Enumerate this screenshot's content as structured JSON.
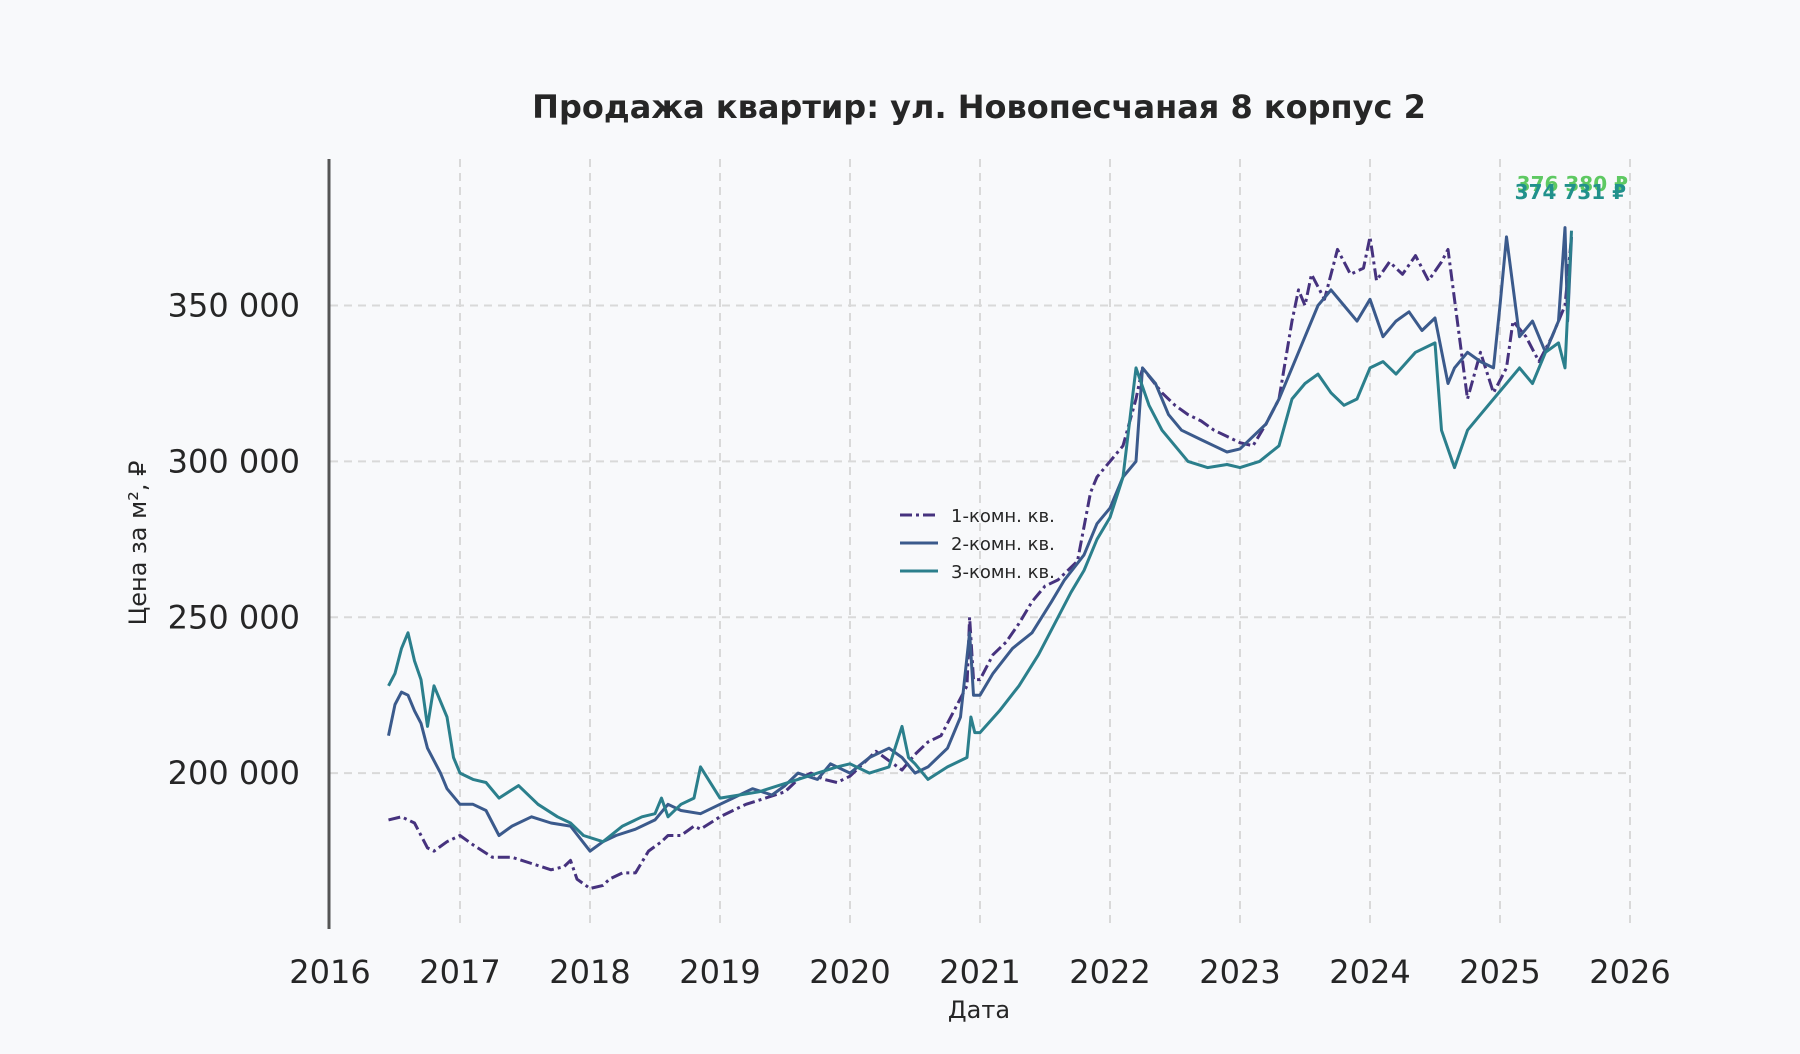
{
  "chart_data": {
    "type": "line",
    "title": "Продажа квартир: ул. Новопесчаная 8 корпус 2",
    "xlabel": "Дата",
    "ylabel": "Цена за м², ₽",
    "xlim": [
      2016.0,
      2026.0
    ],
    "ylim": [
      150000,
      397000
    ],
    "x_ticks": [
      "2016",
      "2017",
      "2018",
      "2019",
      "2020",
      "2021",
      "2022",
      "2023",
      "2024",
      "2025",
      "2026"
    ],
    "y_ticks": [
      {
        "value": 200000,
        "label": "200 000"
      },
      {
        "value": 250000,
        "label": "250 000"
      },
      {
        "value": 300000,
        "label": "300 000"
      },
      {
        "value": 350000,
        "label": "350 000"
      }
    ],
    "grid": true,
    "legend_position": "center",
    "series": [
      {
        "name": "1-комн. кв.",
        "color": "#46327e",
        "dash": "dashdot",
        "x": [
          2016.45,
          2016.55,
          2016.65,
          2016.75,
          2016.8,
          2016.9,
          2017.0,
          2017.1,
          2017.25,
          2017.4,
          2017.55,
          2017.7,
          2017.8,
          2017.85,
          2017.9,
          2018.0,
          2018.1,
          2018.15,
          2018.25,
          2018.35,
          2018.45,
          2018.55,
          2018.6,
          2018.7,
          2018.8,
          2018.85,
          2019.0,
          2019.1,
          2019.2,
          2019.35,
          2019.5,
          2019.6,
          2019.7,
          2019.8,
          2019.9,
          2020.0,
          2020.1,
          2020.2,
          2020.3,
          2020.4,
          2020.5,
          2020.6,
          2020.7,
          2020.8,
          2020.9,
          2020.92,
          2020.95,
          2021.0,
          2021.1,
          2021.2,
          2021.3,
          2021.4,
          2021.5,
          2021.6,
          2021.75,
          2021.85,
          2021.9,
          2022.0,
          2022.1,
          2022.2,
          2022.25,
          2022.4,
          2022.5,
          2022.6,
          2022.7,
          2022.8,
          2022.9,
          2023.0,
          2023.1,
          2023.2,
          2023.3,
          2023.4,
          2023.45,
          2023.5,
          2023.55,
          2023.65,
          2023.75,
          2023.85,
          2023.95,
          2024.0,
          2024.05,
          2024.15,
          2024.25,
          2024.35,
          2024.45,
          2024.55,
          2024.6,
          2024.65,
          2024.75,
          2024.85,
          2024.95,
          2025.05,
          2025.1,
          2025.2,
          2025.3,
          2025.4,
          2025.5,
          2025.55
        ],
        "y": [
          185000,
          186000,
          184000,
          176000,
          175000,
          178000,
          180000,
          177000,
          173000,
          173000,
          171000,
          169000,
          170000,
          172000,
          166000,
          163000,
          164000,
          166000,
          168000,
          168000,
          175000,
          178000,
          180000,
          180000,
          183000,
          182000,
          186000,
          188000,
          190000,
          192000,
          194000,
          198000,
          200000,
          198000,
          197000,
          199000,
          203000,
          207000,
          204000,
          201000,
          206000,
          210000,
          212000,
          220000,
          228000,
          250000,
          230000,
          230000,
          238000,
          242000,
          248000,
          255000,
          260000,
          262000,
          268000,
          290000,
          295000,
          300000,
          305000,
          320000,
          330000,
          322000,
          318000,
          315000,
          313000,
          310000,
          308000,
          306000,
          305000,
          312000,
          320000,
          345000,
          355000,
          350000,
          360000,
          352000,
          368000,
          360000,
          362000,
          372000,
          358000,
          364000,
          360000,
          366000,
          358000,
          364000,
          368000,
          352000,
          320000,
          335000,
          322000,
          330000,
          345000,
          340000,
          332000,
          340000,
          350000,
          372000
        ]
      },
      {
        "name": "2-комн. кв.",
        "color": "#3b5a8c",
        "dash": "solid",
        "x": [
          2016.45,
          2016.5,
          2016.55,
          2016.6,
          2016.65,
          2016.7,
          2016.75,
          2016.85,
          2016.9,
          2017.0,
          2017.1,
          2017.2,
          2017.3,
          2017.4,
          2017.55,
          2017.7,
          2017.85,
          2018.0,
          2018.1,
          2018.2,
          2018.35,
          2018.5,
          2018.6,
          2018.7,
          2018.85,
          2019.0,
          2019.1,
          2019.25,
          2019.4,
          2019.5,
          2019.6,
          2019.75,
          2019.85,
          2020.0,
          2020.15,
          2020.3,
          2020.4,
          2020.5,
          2020.6,
          2020.75,
          2020.85,
          2020.92,
          2020.95,
          2021.0,
          2021.1,
          2021.25,
          2021.4,
          2021.55,
          2021.65,
          2021.8,
          2021.9,
          2022.0,
          2022.1,
          2022.2,
          2022.25,
          2022.35,
          2022.45,
          2022.55,
          2022.7,
          2022.8,
          2022.9,
          2023.0,
          2023.1,
          2023.2,
          2023.3,
          2023.4,
          2023.5,
          2023.6,
          2023.7,
          2023.8,
          2023.9,
          2024.0,
          2024.1,
          2024.2,
          2024.3,
          2024.4,
          2024.5,
          2024.6,
          2024.65,
          2024.75,
          2024.85,
          2024.95,
          2025.0,
          2025.05,
          2025.15,
          2025.25,
          2025.35,
          2025.45,
          2025.5,
          2025.52,
          2025.55
        ],
        "y": [
          212000,
          222000,
          226000,
          225000,
          220000,
          216000,
          208000,
          200000,
          195000,
          190000,
          190000,
          188000,
          180000,
          183000,
          186000,
          184000,
          183000,
          175000,
          178000,
          180000,
          182000,
          185000,
          190000,
          188000,
          187000,
          190000,
          192000,
          195000,
          193000,
          196000,
          200000,
          198000,
          203000,
          200000,
          205000,
          208000,
          205000,
          200000,
          202000,
          208000,
          218000,
          245000,
          225000,
          225000,
          232000,
          240000,
          245000,
          255000,
          262000,
          270000,
          280000,
          285000,
          295000,
          300000,
          330000,
          325000,
          315000,
          310000,
          307000,
          305000,
          303000,
          304000,
          308000,
          312000,
          320000,
          330000,
          340000,
          350000,
          355000,
          350000,
          345000,
          352000,
          340000,
          345000,
          348000,
          342000,
          346000,
          325000,
          330000,
          335000,
          332000,
          330000,
          350000,
          372000,
          340000,
          345000,
          335000,
          345000,
          375000,
          345000,
          372000
        ]
      },
      {
        "name": "3-комн. кв.",
        "color": "#2b7f8c",
        "dash": "solid",
        "x": [
          2016.45,
          2016.5,
          2016.55,
          2016.6,
          2016.65,
          2016.7,
          2016.75,
          2016.8,
          2016.9,
          2016.95,
          2017.0,
          2017.1,
          2017.2,
          2017.3,
          2017.45,
          2017.6,
          2017.75,
          2017.85,
          2017.95,
          2018.1,
          2018.25,
          2018.4,
          2018.5,
          2018.55,
          2018.6,
          2018.7,
          2018.8,
          2018.85,
          2019.0,
          2019.15,
          2019.3,
          2019.45,
          2019.6,
          2019.75,
          2019.9,
          2020.0,
          2020.15,
          2020.3,
          2020.4,
          2020.45,
          2020.5,
          2020.6,
          2020.75,
          2020.9,
          2020.93,
          2020.96,
          2021.0,
          2021.15,
          2021.3,
          2021.45,
          2021.6,
          2021.7,
          2021.8,
          2021.9,
          2022.0,
          2022.1,
          2022.2,
          2022.3,
          2022.4,
          2022.5,
          2022.6,
          2022.75,
          2022.9,
          2023.0,
          2023.15,
          2023.3,
          2023.4,
          2023.5,
          2023.6,
          2023.7,
          2023.8,
          2023.9,
          2024.0,
          2024.1,
          2024.2,
          2024.35,
          2024.5,
          2024.55,
          2024.65,
          2024.75,
          2024.85,
          2024.95,
          2025.05,
          2025.15,
          2025.25,
          2025.35,
          2025.45,
          2025.5,
          2025.55
        ],
        "y": [
          228000,
          232000,
          240000,
          245000,
          236000,
          230000,
          215000,
          228000,
          218000,
          205000,
          200000,
          198000,
          197000,
          192000,
          196000,
          190000,
          186000,
          184000,
          180000,
          178000,
          183000,
          186000,
          187000,
          192000,
          186000,
          190000,
          192000,
          202000,
          192000,
          193000,
          194000,
          196000,
          198000,
          200000,
          202000,
          203000,
          200000,
          202000,
          215000,
          205000,
          203000,
          198000,
          202000,
          205000,
          218000,
          213000,
          213000,
          220000,
          228000,
          238000,
          250000,
          258000,
          265000,
          275000,
          282000,
          295000,
          330000,
          318000,
          310000,
          305000,
          300000,
          298000,
          299000,
          298000,
          300000,
          305000,
          320000,
          325000,
          328000,
          322000,
          318000,
          320000,
          330000,
          332000,
          328000,
          335000,
          338000,
          310000,
          298000,
          310000,
          315000,
          320000,
          325000,
          330000,
          325000,
          335000,
          338000,
          330000,
          374000
        ]
      }
    ],
    "annotations": [
      {
        "text": "376 380 ₽",
        "color": "#5ec962"
      },
      {
        "text": "374 731 ₽",
        "color": "#21918c"
      }
    ]
  }
}
